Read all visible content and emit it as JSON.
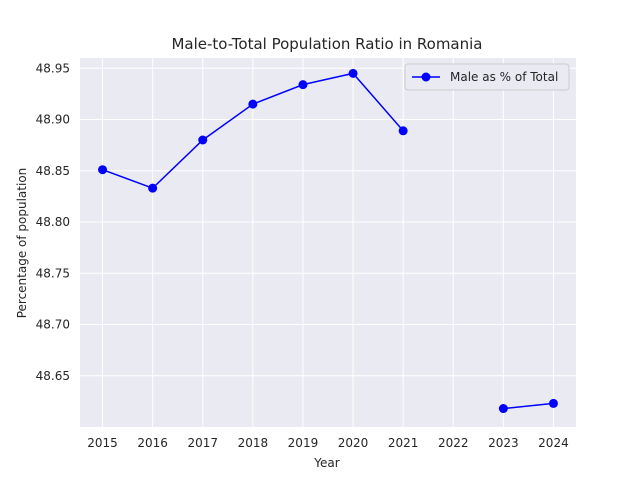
{
  "chart_data": {
    "type": "line",
    "title": "Male-to-Total Population Ratio in Romania",
    "xlabel": "Year",
    "ylabel": "Percentage of population",
    "x": [
      2015,
      2016,
      2017,
      2018,
      2019,
      2020,
      2021,
      2022,
      2023,
      2024
    ],
    "x_tick_labels": [
      "2015",
      "2016",
      "2017",
      "2018",
      "2019",
      "2020",
      "2021",
      "2022",
      "2023",
      "2024"
    ],
    "xlim": [
      2014.55,
      2024.45
    ],
    "ylim": [
      48.6,
      48.96
    ],
    "y_ticks": [
      48.65,
      48.7,
      48.75,
      48.8,
      48.85,
      48.9,
      48.95
    ],
    "y_tick_labels": [
      "48.65",
      "48.70",
      "48.75",
      "48.80",
      "48.85",
      "48.90",
      "48.95"
    ],
    "grid": true,
    "legend_position": "top-right",
    "series": [
      {
        "name": "Male as % of Total",
        "color": "#0000ff",
        "marker": "circle",
        "values": [
          48.851,
          48.833,
          48.88,
          48.915,
          48.934,
          48.945,
          48.889,
          null,
          48.618,
          48.623
        ]
      }
    ],
    "background_color": "#eaeaf2",
    "grid_color": "#ffffff"
  }
}
